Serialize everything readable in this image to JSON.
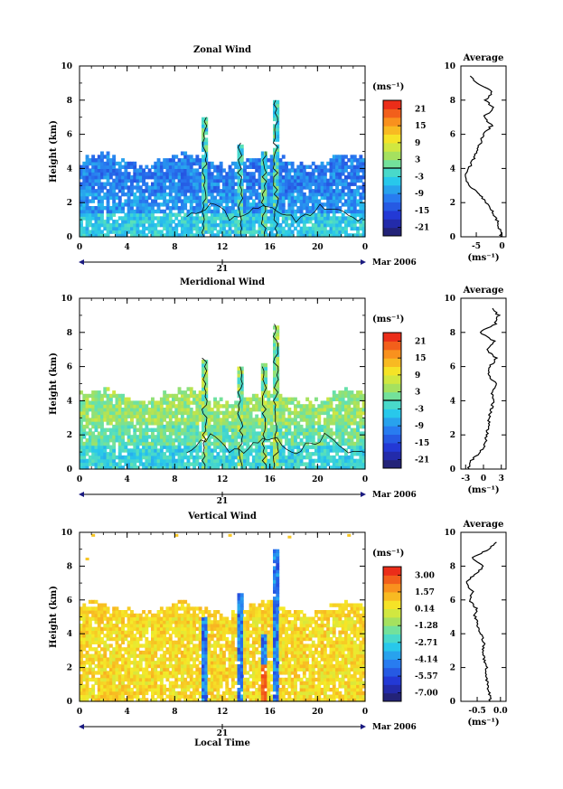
{
  "chart_data": [
    {
      "type": "heatmap",
      "title": "Zonal Wind",
      "xlabel": "",
      "ylabel": "Height (km)",
      "x_ticks": [
        "0",
        "4",
        "8",
        "12",
        "16",
        "20",
        "0"
      ],
      "y_ticks": [
        "0",
        "2",
        "4",
        "6",
        "8",
        "10"
      ],
      "ylim": [
        0,
        10
      ],
      "date_marker": "21",
      "date_label": "Mar 2006",
      "colorbar": {
        "unit": "(ms⁻¹)",
        "ticks": [
          "21",
          "15",
          "9",
          "3",
          "-3",
          "-9",
          "-15",
          "-21"
        ],
        "range": [
          -24,
          24
        ]
      },
      "field_summary": {
        "valid_height_max_km": 4.5,
        "background_value": -9,
        "low_level_value": -4,
        "upper_value": -11,
        "plumes_hours": [
          10.5,
          13.5,
          15.5,
          16.5
        ],
        "plume_tops_km": [
          7,
          5.5,
          5,
          8
        ]
      },
      "profile": {
        "title": "Average",
        "xlabel": "(ms⁻¹)",
        "x_ticks": [
          "-5",
          "0"
        ],
        "xlim": [
          -8,
          0.8
        ],
        "height": [
          0.0,
          0.5,
          1.0,
          1.5,
          2.0,
          2.5,
          3.0,
          3.5,
          4.0,
          4.5,
          5.0,
          5.5,
          6.0,
          6.5,
          7.0,
          7.5,
          8.0,
          8.5,
          9.0,
          9.5
        ],
        "value": [
          -0.1,
          -0.5,
          -1.0,
          -1.8,
          -3.0,
          -4.5,
          -6.2,
          -7.3,
          -6.5,
          -5.6,
          -4.8,
          -4.2,
          -3.7,
          -2.0,
          -3.6,
          -1.6,
          -3.2,
          -1.8,
          -5.0,
          -6.5
        ]
      }
    },
    {
      "type": "heatmap",
      "title": "Meridional Wind",
      "xlabel": "",
      "ylabel": "Height (km)",
      "x_ticks": [
        "0",
        "4",
        "8",
        "12",
        "16",
        "20",
        "0"
      ],
      "y_ticks": [
        "0",
        "2",
        "4",
        "6",
        "8",
        "10"
      ],
      "ylim": [
        0,
        10
      ],
      "date_marker": "21",
      "date_label": "Mar 2006",
      "colorbar": {
        "unit": "(ms⁻¹)",
        "ticks": [
          "21",
          "15",
          "9",
          "3",
          "-3",
          "-9",
          "-15",
          "-21"
        ],
        "range": [
          -24,
          24
        ]
      },
      "field_summary": {
        "valid_height_max_km": 4.3,
        "background_value": 1,
        "low_level_value": -3,
        "upper_value": 4,
        "plumes_hours": [
          10.5,
          13.5,
          15.5,
          16.5
        ],
        "plume_tops_km": [
          6.5,
          6.0,
          6.2,
          8.5
        ]
      },
      "profile": {
        "title": "Average",
        "xlabel": "(ms⁻¹)",
        "x_ticks": [
          "-3",
          "0",
          "3"
        ],
        "xlim": [
          -3.8,
          3.8
        ],
        "height": [
          0.0,
          0.5,
          1.0,
          1.5,
          2.0,
          2.5,
          3.0,
          3.5,
          4.0,
          4.5,
          5.0,
          5.5,
          6.0,
          6.5,
          7.0,
          7.5,
          8.0,
          8.5,
          9.0,
          9.5
        ],
        "value": [
          -2.5,
          -2.0,
          -0.5,
          0.3,
          0.6,
          0.8,
          1.0,
          1.3,
          1.7,
          1.5,
          2.0,
          0.9,
          1.1,
          2.2,
          0.5,
          1.8,
          -0.7,
          2.0,
          2.5,
          1.2
        ]
      }
    },
    {
      "type": "heatmap",
      "title": "Vertical Wind",
      "xlabel": "Local Time",
      "ylabel": "Height (km)",
      "x_ticks": [
        "0",
        "4",
        "8",
        "12",
        "16",
        "20",
        "0"
      ],
      "y_ticks": [
        "0",
        "2",
        "4",
        "6",
        "8",
        "10"
      ],
      "ylim": [
        0,
        10
      ],
      "date_marker": "21",
      "date_label": "Mar 2006",
      "colorbar": {
        "unit": "(ms⁻¹)",
        "ticks": [
          "3.00",
          "1.57",
          "0.14",
          "-1.28",
          "-2.71",
          "-4.14",
          "-5.57",
          "-7.00"
        ],
        "range": [
          -7.7,
          3.7
        ]
      },
      "field_summary": {
        "valid_height_max_km": 5.5,
        "background_value": 0.8,
        "plumes_hours": [
          10.5,
          13.5,
          15.5,
          16.5
        ],
        "plume_tops_km": [
          5,
          6.5,
          4,
          9
        ]
      },
      "profile": {
        "title": "Average",
        "xlabel": "(ms⁻¹)",
        "x_ticks": [
          "-0.5",
          "0.0"
        ],
        "xlim": [
          -0.85,
          0.12
        ],
        "height": [
          0.0,
          0.5,
          1.0,
          1.5,
          2.0,
          2.5,
          3.0,
          3.5,
          4.0,
          4.5,
          5.0,
          5.5,
          6.0,
          6.5,
          7.0,
          7.5,
          8.0,
          8.5,
          9.0,
          9.5
        ],
        "value": [
          -0.22,
          -0.25,
          -0.28,
          -0.32,
          -0.3,
          -0.35,
          -0.38,
          -0.36,
          -0.42,
          -0.48,
          -0.55,
          -0.52,
          -0.68,
          -0.6,
          -0.75,
          -0.55,
          -0.35,
          -0.62,
          -0.25,
          -0.05
        ]
      }
    }
  ]
}
